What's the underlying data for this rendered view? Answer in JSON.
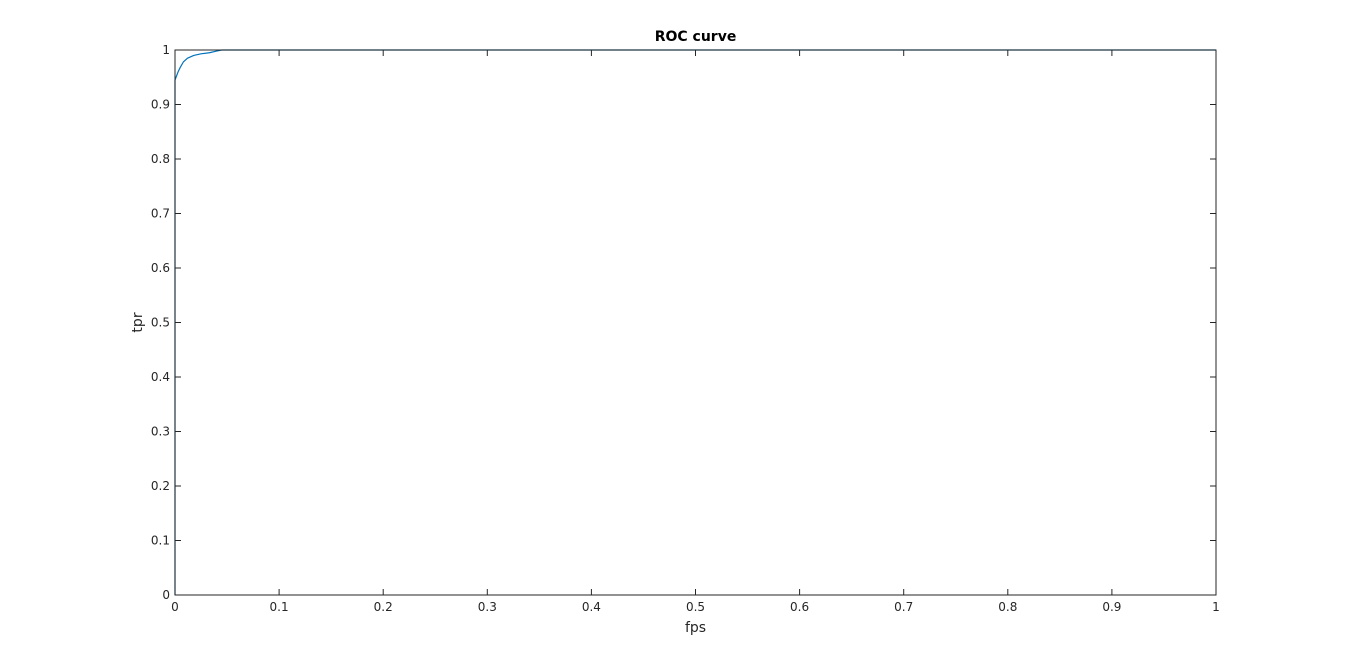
{
  "chart_data": {
    "type": "line",
    "title": "ROC curve",
    "xlabel": "fps",
    "ylabel": "tpr",
    "xlim": [
      0,
      1
    ],
    "ylim": [
      0,
      1
    ],
    "grid": false,
    "x_ticks": [
      0,
      0.1,
      0.2,
      0.3,
      0.4,
      0.5,
      0.6,
      0.7,
      0.8,
      0.9,
      1
    ],
    "x_tick_labels": [
      "0",
      "0.1",
      "0.2",
      "0.3",
      "0.4",
      "0.5",
      "0.6",
      "0.7",
      "0.8",
      "0.9",
      "1"
    ],
    "y_ticks": [
      0,
      0.1,
      0.2,
      0.3,
      0.4,
      0.5,
      0.6,
      0.7,
      0.8,
      0.9,
      1
    ],
    "y_tick_labels": [
      "0",
      "0.1",
      "0.2",
      "0.3",
      "0.4",
      "0.5",
      "0.6",
      "0.7",
      "0.8",
      "0.9",
      "1"
    ],
    "series": [
      {
        "color": "#0072bd",
        "x": [
          0,
          0,
          0.001,
          0.002,
          0.003,
          0.005,
          0.008,
          0.012,
          0.018,
          0.025,
          0.033,
          0.04,
          0.045,
          0.05,
          0.2,
          0.5,
          0.8,
          1
        ],
        "y": [
          0,
          0.945,
          0.95,
          0.955,
          0.96,
          0.968,
          0.978,
          0.985,
          0.99,
          0.993,
          0.995,
          0.998,
          1,
          1,
          1,
          1,
          1,
          1
        ]
      }
    ]
  }
}
